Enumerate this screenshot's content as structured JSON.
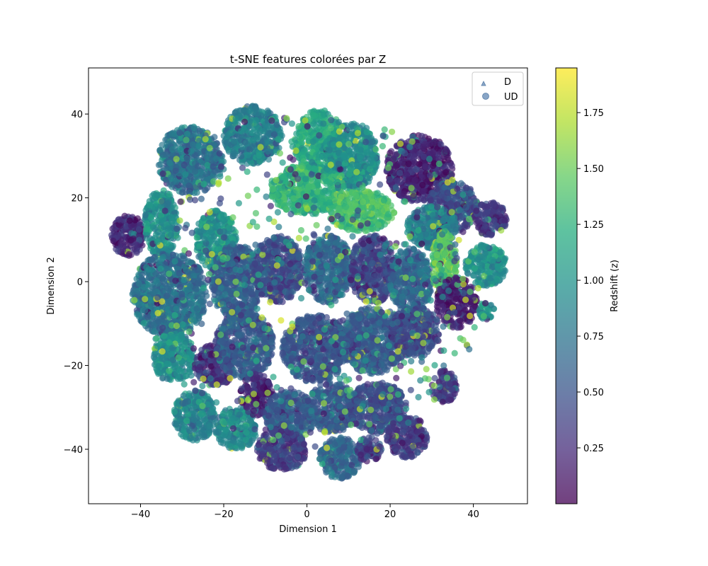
{
  "chart_data": {
    "type": "scatter",
    "title": "t-SNE features colorées par Z",
    "xlabel": "Dimension 1",
    "ylabel": "Dimension 2",
    "xlim": [
      -52.5,
      53
    ],
    "ylim": [
      -53,
      51
    ],
    "x_ticks": [
      -40,
      -20,
      0,
      20,
      40
    ],
    "x_tick_labels": [
      "−40",
      "−20",
      "0",
      "20",
      "40"
    ],
    "y_ticks": [
      -40,
      -20,
      0,
      20,
      40
    ],
    "y_tick_labels": [
      "−40",
      "−20",
      "0",
      "20",
      "40"
    ],
    "grid": false,
    "legend_position": "upper right",
    "colormap": "viridis",
    "colorbar": {
      "label": "Redshift (z)",
      "range": [
        0.0,
        1.95
      ],
      "ticks": [
        0.25,
        0.5,
        0.75,
        1.0,
        1.25,
        1.5,
        1.75
      ],
      "tick_labels": [
        "0.25",
        "0.50",
        "0.75",
        "1.00",
        "1.25",
        "1.50",
        "1.75"
      ]
    },
    "series": [
      {
        "name": "D",
        "marker": "triangle",
        "color": "#6a8fb8"
      },
      {
        "name": "UD",
        "marker": "circle",
        "color": "#6a8fb8"
      }
    ],
    "clusters": [
      {
        "x": -28,
        "y": 29,
        "rx": 8,
        "ry": 8,
        "z": 0.72
      },
      {
        "x": -13,
        "y": 35,
        "rx": 7,
        "ry": 7,
        "z": 0.82
      },
      {
        "x": 3,
        "y": 33,
        "rx": 6,
        "ry": 8,
        "z": 1.15
      },
      {
        "x": 11,
        "y": 30,
        "rx": 6,
        "ry": 8,
        "z": 0.95
      },
      {
        "x": 27,
        "y": 27,
        "rx": 8,
        "ry": 8,
        "z": 0.18
      },
      {
        "x": -43,
        "y": 11,
        "rx": 4,
        "ry": 5,
        "z": 0.22
      },
      {
        "x": -35,
        "y": 14,
        "rx": 4,
        "ry": 8,
        "z": 0.95
      },
      {
        "x": -22,
        "y": 10,
        "rx": 5,
        "ry": 7,
        "z": 1.0
      },
      {
        "x": 0,
        "y": 22,
        "rx": 9,
        "ry": 6,
        "z": 1.25
      },
      {
        "x": 13,
        "y": 17,
        "rx": 8,
        "ry": 5,
        "z": 1.35
      },
      {
        "x": 35,
        "y": 18,
        "rx": 6,
        "ry": 6,
        "z": 0.45
      },
      {
        "x": 30,
        "y": 13,
        "rx": 6,
        "ry": 5,
        "z": 0.85
      },
      {
        "x": -33,
        "y": -3,
        "rx": 9,
        "ry": 10,
        "z": 0.72
      },
      {
        "x": -17,
        "y": 0,
        "rx": 6,
        "ry": 9,
        "z": 0.6
      },
      {
        "x": -7,
        "y": 3,
        "rx": 6,
        "ry": 8,
        "z": 0.45
      },
      {
        "x": 5,
        "y": 3,
        "rx": 6,
        "ry": 8,
        "z": 0.65
      },
      {
        "x": 16,
        "y": 3,
        "rx": 6,
        "ry": 8,
        "z": 0.4
      },
      {
        "x": 25,
        "y": 0,
        "rx": 5,
        "ry": 8,
        "z": 0.65
      },
      {
        "x": 33,
        "y": 4,
        "rx": 3,
        "ry": 8,
        "z": 1.45
      },
      {
        "x": 36,
        "y": -5,
        "rx": 5,
        "ry": 6,
        "z": 0.15
      },
      {
        "x": 43,
        "y": 4,
        "rx": 5,
        "ry": 5,
        "z": 0.95
      },
      {
        "x": 43,
        "y": -7,
        "rx": 2,
        "ry": 2,
        "z": 1.05
      },
      {
        "x": 44,
        "y": 15,
        "rx": 4,
        "ry": 4,
        "z": 0.3
      },
      {
        "x": -32,
        "y": -18,
        "rx": 5,
        "ry": 6,
        "z": 0.95
      },
      {
        "x": -22,
        "y": -20,
        "rx": 5,
        "ry": 5,
        "z": 0.25
      },
      {
        "x": -15,
        "y": -15,
        "rx": 7,
        "ry": 8,
        "z": 0.55
      },
      {
        "x": 2,
        "y": -16,
        "rx": 8,
        "ry": 8,
        "z": 0.5
      },
      {
        "x": 16,
        "y": -14,
        "rx": 8,
        "ry": 8,
        "z": 0.55
      },
      {
        "x": 26,
        "y": -12,
        "rx": 6,
        "ry": 6,
        "z": 0.45
      },
      {
        "x": -27,
        "y": -32,
        "rx": 5,
        "ry": 6,
        "z": 0.85
      },
      {
        "x": -17,
        "y": -35,
        "rx": 5,
        "ry": 5,
        "z": 0.9
      },
      {
        "x": -12,
        "y": -27,
        "rx": 4,
        "ry": 5,
        "z": 0.2
      },
      {
        "x": -4,
        "y": -32,
        "rx": 6,
        "ry": 6,
        "z": 0.55
      },
      {
        "x": -6,
        "y": -40,
        "rx": 6,
        "ry": 5,
        "z": 0.35
      },
      {
        "x": 6,
        "y": -30,
        "rx": 6,
        "ry": 6,
        "z": 0.55
      },
      {
        "x": 8,
        "y": -42,
        "rx": 5,
        "ry": 5,
        "z": 0.65
      },
      {
        "x": 17,
        "y": -30,
        "rx": 7,
        "ry": 6,
        "z": 0.45
      },
      {
        "x": 24,
        "y": -37,
        "rx": 5,
        "ry": 5,
        "z": 0.35
      },
      {
        "x": 15,
        "y": -40,
        "rx": 3,
        "ry": 3,
        "z": 0.35
      },
      {
        "x": 33,
        "y": -25,
        "rx": 3,
        "ry": 4,
        "z": 0.3
      }
    ]
  },
  "legend": {
    "items": [
      {
        "label": "D",
        "marker": "triangle"
      },
      {
        "label": "UD",
        "marker": "circle"
      }
    ]
  }
}
